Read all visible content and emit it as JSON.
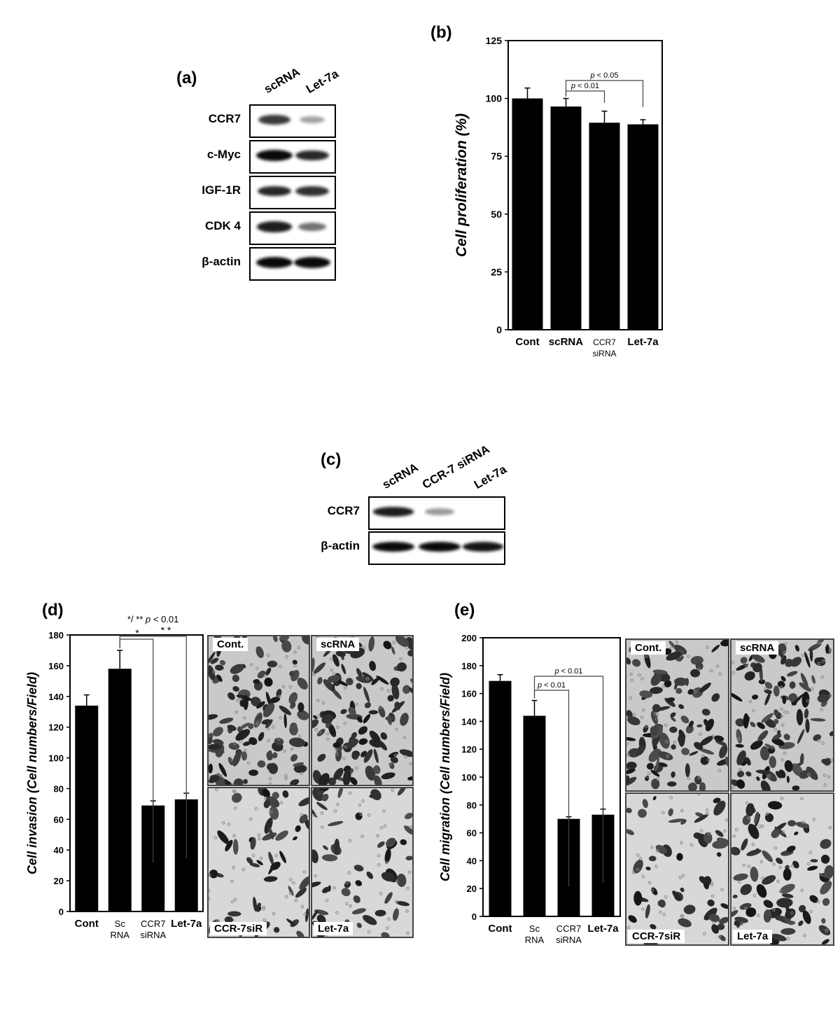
{
  "panels": {
    "a": {
      "letter": "(a)",
      "columns": [
        "scRNA",
        "Let-7a"
      ],
      "rows": [
        {
          "label": "CCR7",
          "intensities": [
            0.75,
            0.2
          ]
        },
        {
          "label": "c-Myc",
          "intensities": [
            1.0,
            0.85
          ]
        },
        {
          "label": "IGF-1R",
          "intensities": [
            0.85,
            0.8
          ]
        },
        {
          "label": "CDK 4",
          "intensities": [
            0.9,
            0.45
          ]
        },
        {
          "label": "β-actin",
          "intensities": [
            1.0,
            1.0
          ]
        }
      ]
    },
    "b": {
      "letter": "(b)"
    },
    "c": {
      "letter": "(c)",
      "columns": [
        "scRNA",
        "CCR-7 siRNA",
        "Let-7a"
      ],
      "rows": [
        {
          "label": "CCR7",
          "intensities": [
            0.9,
            0.25,
            0.0
          ]
        },
        {
          "label": "β-actin",
          "intensities": [
            1.0,
            1.0,
            0.95
          ]
        }
      ]
    },
    "d": {
      "letter": "(d)",
      "sig_note": "*/ ** p < 0.01",
      "sig_note_parts": [
        "*/ ** ",
        "p",
        " < 0.01"
      ],
      "photos": [
        "Cont.",
        "scRNA",
        "CCR-7siR",
        "Let-7a"
      ]
    },
    "e": {
      "letter": "(e)",
      "photos": [
        "Cont.",
        "scRNA",
        "CCR-7siR",
        "Let-7a"
      ]
    }
  },
  "chart_data": [
    {
      "id": "b",
      "type": "bar",
      "categories": [
        "Cont",
        "scRNA",
        "CCR7\nsiRNA",
        "Let-7a"
      ],
      "values": [
        100,
        96.5,
        89.5,
        88.8
      ],
      "errors": [
        4.5,
        3.5,
        5,
        2
      ],
      "ylabel": "Cell proliferation (%)",
      "ylim": [
        0,
        125
      ],
      "yticks": [
        0,
        25,
        50,
        75,
        100,
        125
      ],
      "brackets": [
        {
          "from": 1,
          "to": 2,
          "label": "p < 0.01"
        },
        {
          "from": 1,
          "to": 3,
          "label": "p < 0.05"
        }
      ]
    },
    {
      "id": "d",
      "type": "bar",
      "categories": [
        "Cont",
        "Sc\nRNA",
        "CCR7\nsiRNA",
        "Let-7a"
      ],
      "values": [
        134,
        158,
        69,
        73
      ],
      "errors": [
        7,
        12,
        3,
        4
      ],
      "ylabel": "Cell invasion (Cell numbers/Field)",
      "ylim": [
        0,
        180
      ],
      "yticks": [
        0,
        20,
        40,
        60,
        80,
        100,
        120,
        140,
        160,
        180
      ],
      "brackets": [
        {
          "from": 1,
          "to": 2,
          "label": "*"
        },
        {
          "from": 1,
          "to": 3,
          "label": "* *"
        }
      ]
    },
    {
      "id": "e",
      "type": "bar",
      "categories": [
        "Cont",
        "Sc\nRNA",
        "CCR7\nsiRNA",
        "Let-7a"
      ],
      "values": [
        169,
        144,
        70,
        73
      ],
      "errors": [
        4.5,
        11,
        1.5,
        4
      ],
      "ylabel": "Cell migration (Cell numbers/Field)",
      "ylim": [
        0,
        200
      ],
      "yticks": [
        0,
        20,
        40,
        60,
        80,
        100,
        120,
        140,
        160,
        180,
        200
      ],
      "brackets": [
        {
          "from": 1,
          "to": 2,
          "label": "p < 0.01"
        },
        {
          "from": 1,
          "to": 3,
          "label": "p < 0.01"
        }
      ]
    }
  ]
}
